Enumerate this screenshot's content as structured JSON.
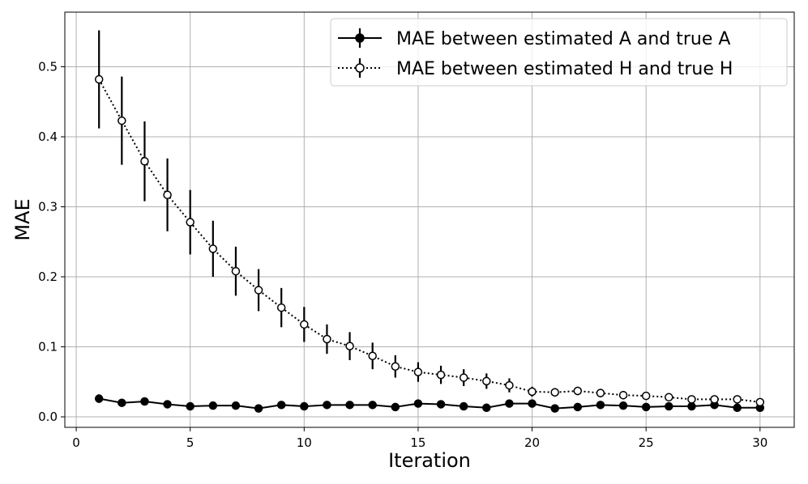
{
  "chart_data": {
    "type": "line",
    "title": "",
    "xlabel": "Iteration",
    "ylabel": "MAE",
    "xlim": [
      -0.5,
      31.5
    ],
    "ylim": [
      -0.015,
      0.578
    ],
    "xticks": [
      0,
      5,
      10,
      15,
      20,
      25,
      30
    ],
    "xtick_labels": [
      "0",
      "5",
      "10",
      "15",
      "20",
      "25",
      "30"
    ],
    "yticks": [
      0.0,
      0.1,
      0.2,
      0.3,
      0.4,
      0.5
    ],
    "ytick_labels": [
      "0.0",
      "0.1",
      "0.2",
      "0.3",
      "0.4",
      "0.5"
    ],
    "grid": true,
    "legend_position": "top-right",
    "x": [
      1,
      2,
      3,
      4,
      5,
      6,
      7,
      8,
      9,
      10,
      11,
      12,
      13,
      14,
      15,
      16,
      17,
      18,
      19,
      20,
      21,
      22,
      23,
      24,
      25,
      26,
      27,
      28,
      29,
      30
    ],
    "series": [
      {
        "name": "MAE between estimated A and true A",
        "style": "solid",
        "marker": "filled-circle",
        "color": "#000000",
        "values": [
          0.026,
          0.02,
          0.022,
          0.018,
          0.015,
          0.016,
          0.016,
          0.012,
          0.017,
          0.015,
          0.017,
          0.017,
          0.017,
          0.014,
          0.019,
          0.018,
          0.015,
          0.013,
          0.019,
          0.019,
          0.012,
          0.014,
          0.017,
          0.016,
          0.014,
          0.015,
          0.015,
          0.017,
          0.013,
          0.013
        ],
        "errors": [
          0.006,
          0.003,
          0.003,
          0.003,
          0.003,
          0.003,
          0.003,
          0.003,
          0.003,
          0.003,
          0.003,
          0.003,
          0.003,
          0.003,
          0.003,
          0.003,
          0.003,
          0.003,
          0.003,
          0.003,
          0.003,
          0.003,
          0.003,
          0.003,
          0.003,
          0.003,
          0.003,
          0.003,
          0.003,
          0.003
        ]
      },
      {
        "name": "MAE between estimated H and true H",
        "style": "dotted",
        "marker": "open-circle",
        "color": "#000000",
        "values": [
          0.482,
          0.423,
          0.365,
          0.317,
          0.278,
          0.24,
          0.208,
          0.181,
          0.156,
          0.132,
          0.111,
          0.101,
          0.087,
          0.072,
          0.064,
          0.06,
          0.056,
          0.051,
          0.045,
          0.036,
          0.035,
          0.037,
          0.034,
          0.031,
          0.03,
          0.028,
          0.025,
          0.025,
          0.025,
          0.021
        ],
        "errors": [
          0.07,
          0.063,
          0.057,
          0.052,
          0.046,
          0.04,
          0.035,
          0.03,
          0.028,
          0.025,
          0.021,
          0.02,
          0.019,
          0.016,
          0.014,
          0.013,
          0.012,
          0.011,
          0.01,
          0.007,
          0.006,
          0.006,
          0.006,
          0.006,
          0.005,
          0.005,
          0.005,
          0.005,
          0.005,
          0.004
        ]
      }
    ]
  }
}
